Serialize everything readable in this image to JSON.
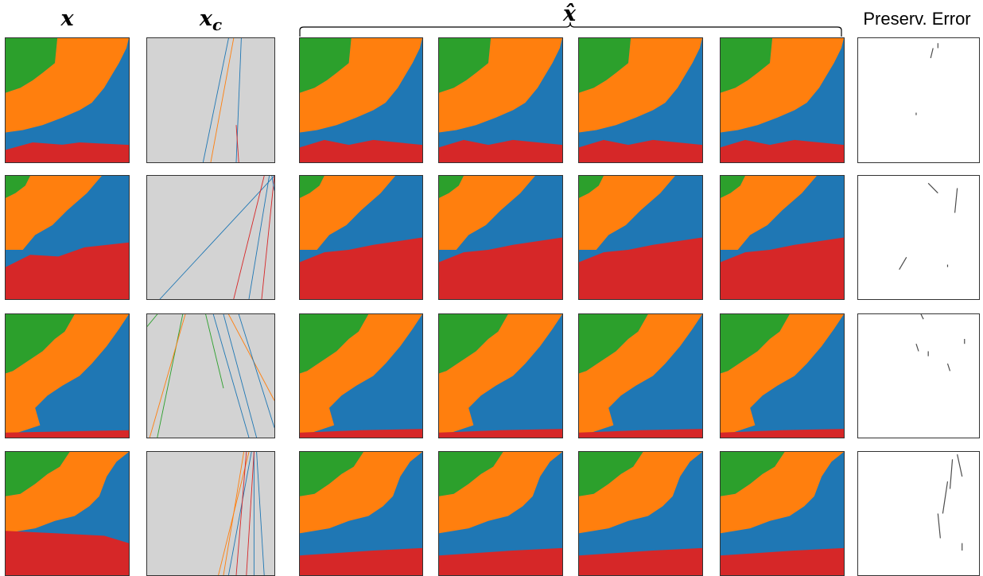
{
  "headers": {
    "x": "x",
    "xc_base": "x",
    "xc_sub": "c",
    "xhat": "x̂",
    "error": "Preserv. Error"
  },
  "colors": {
    "green": "#2ca02c",
    "orange": "#ff7f0e",
    "blue": "#1f77b4",
    "red": "#d62728",
    "sparse_bg": "#d3d3d3",
    "error_bg": "#ffffff",
    "error_mark": "#000000"
  },
  "rows": [
    {
      "id": "row-1"
    },
    {
      "id": "row-2"
    },
    {
      "id": "row-3"
    },
    {
      "id": "row-4"
    }
  ]
}
